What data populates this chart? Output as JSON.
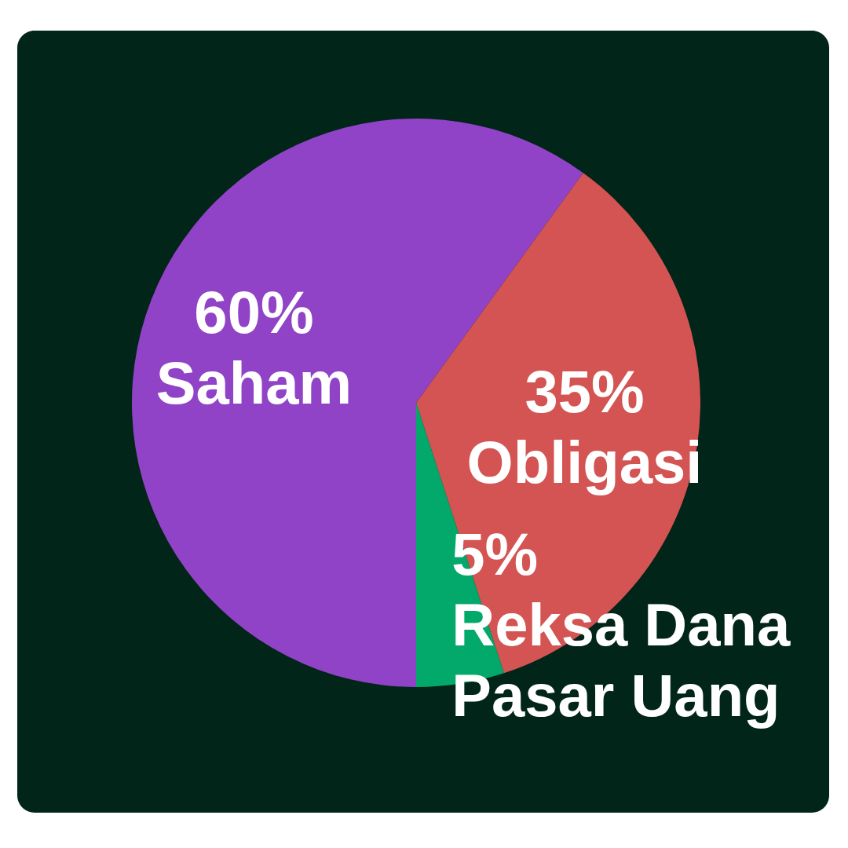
{
  "chart_data": {
    "type": "pie",
    "categories": [
      "Saham",
      "Obligasi",
      "Reksa Dana Pasar Uang"
    ],
    "values": [
      60,
      35,
      5
    ],
    "colors": [
      "#9043c6",
      "#d35452",
      "#03a96a"
    ],
    "value_labels": [
      "60%",
      "35%",
      "5%"
    ]
  }
}
